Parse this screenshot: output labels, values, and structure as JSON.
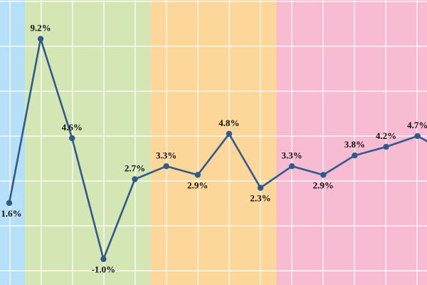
{
  "chart_data": {
    "type": "line",
    "x": [
      1,
      2,
      3,
      4,
      5,
      6,
      7,
      8,
      9,
      10,
      11,
      12,
      13,
      14,
      15
    ],
    "series": [
      {
        "values": [
          1.6,
          9.2,
          4.6,
          -1.0,
          2.7,
          3.3,
          2.9,
          4.8,
          2.3,
          3.3,
          2.9,
          3.8,
          4.2,
          4.7,
          3.9
        ],
        "labels": [
          "1.6%",
          "9.2%",
          "4.6%",
          "-1.0%",
          "2.7%",
          "3.3%",
          "2.9%",
          "4.8%",
          "2.3%",
          "3.3%",
          "2.9%",
          "3.8%",
          "4.2%",
          "4.7%",
          ""
        ]
      }
    ],
    "ylim": [
      -2.2,
      11.0
    ],
    "grid": true,
    "legend": "none",
    "background_bands": [
      {
        "from_point": 0,
        "to_point": 1,
        "color": "#b5e0f7"
      },
      {
        "from_point": 1,
        "to_point": 5,
        "color": "#d5e6b5"
      },
      {
        "from_point": 5,
        "to_point": 9,
        "color": "#fdd699"
      },
      {
        "from_point": 9,
        "to_point": 14,
        "color": "#f7bcd1"
      }
    ],
    "colors": {
      "line": "#2f5a8c",
      "grid": "#ffffff",
      "label": "#111111"
    }
  }
}
